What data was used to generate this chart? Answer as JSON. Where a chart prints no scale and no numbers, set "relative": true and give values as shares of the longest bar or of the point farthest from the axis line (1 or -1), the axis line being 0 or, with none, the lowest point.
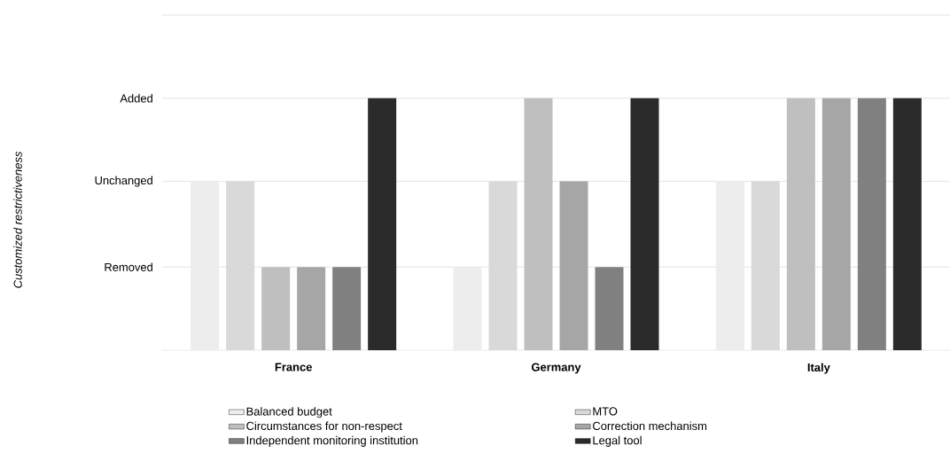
{
  "chart_data": {
    "type": "bar",
    "relative": true,
    "annotations": [
      "Customized restrictiveness"
    ],
    "categories": [
      "France",
      "Germany",
      "Italy"
    ],
    "series": [
      {
        "name": "Balanced budget",
        "color": "#ededed",
        "values": [
          0.67,
          0.33,
          0.67
        ]
      },
      {
        "name": "MTO",
        "color": "#d9d9d9",
        "values": [
          0.67,
          0.67,
          0.67
        ]
      },
      {
        "name": "Circumstances for non-respect",
        "color": "#bfbfbf",
        "values": [
          0.33,
          1,
          1
        ]
      },
      {
        "name": "Correction mechanism",
        "color": "#a6a6a6",
        "values": [
          0.33,
          0.67,
          1
        ]
      },
      {
        "name": "Independent monitoring institution",
        "color": "#808080",
        "values": [
          0.33,
          0.33,
          1
        ]
      },
      {
        "name": "Legal tool",
        "color": "#2b2b2b",
        "values": [
          1,
          1,
          1
        ]
      }
    ],
    "ref_lines": [
      {
        "axis": "y",
        "value": 0.33,
        "label": "Removed",
        "color": "#e3e3e3"
      },
      {
        "axis": "y",
        "value": 0.67,
        "label": "Unchanged",
        "color": "#e3e3e3"
      },
      {
        "axis": "y",
        "value": 1,
        "label": "Added",
        "color": "#e3e3e3"
      },
      {
        "axis": "y",
        "value": 1.33,
        "color": "#e3e3e3"
      }
    ],
    "legend": "bottom"
  }
}
